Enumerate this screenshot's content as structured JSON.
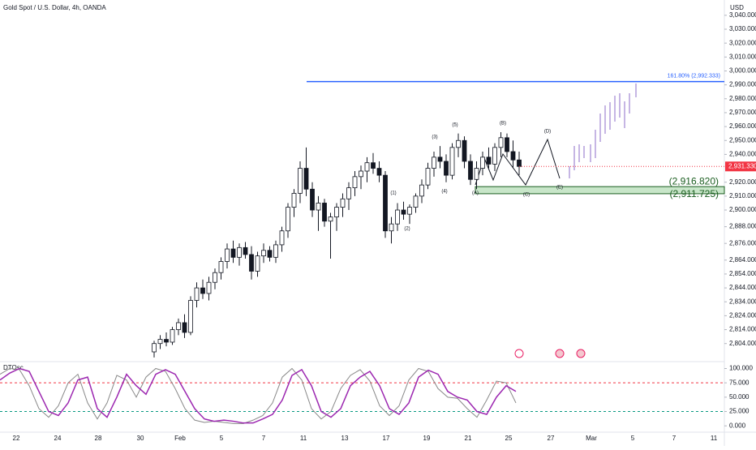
{
  "chart_data": {
    "type": "candlestick",
    "title": "Gold Spot / U.S. Dollar, 4h, OANDA",
    "currency": "USD",
    "ylim": [
      2791,
      3051
    ],
    "yticks": [
      {
        "value": 3040,
        "label": "3,040.000"
      },
      {
        "value": 3030,
        "label": "3,030.000"
      },
      {
        "value": 3020,
        "label": "3,020.000"
      },
      {
        "value": 3010,
        "label": "3,010.000"
      },
      {
        "value": 3000,
        "label": "3,000.000"
      },
      {
        "value": 2990,
        "label": "2,990.000"
      },
      {
        "value": 2980,
        "label": "2,980.000"
      },
      {
        "value": 2970,
        "label": "2,970.000"
      },
      {
        "value": 2960,
        "label": "2,960.000"
      },
      {
        "value": 2950,
        "label": "2,950.000"
      },
      {
        "value": 2940,
        "label": "2,940.000"
      },
      {
        "value": 2920,
        "label": "2,920.000"
      },
      {
        "value": 2910,
        "label": "2,910.000"
      },
      {
        "value": 2900,
        "label": "2,900.000"
      },
      {
        "value": 2888,
        "label": "2,888.000"
      },
      {
        "value": 2876,
        "label": "2,876.000"
      },
      {
        "value": 2864,
        "label": "2,864.000"
      },
      {
        "value": 2854,
        "label": "2,854.000"
      },
      {
        "value": 2844,
        "label": "2,844.000"
      },
      {
        "value": 2834,
        "label": "2,834.000"
      },
      {
        "value": 2824,
        "label": "2,824.000"
      },
      {
        "value": 2814,
        "label": "2,814.000"
      },
      {
        "value": 2804,
        "label": "2,804.000"
      }
    ],
    "xticks": [
      "22",
      "24",
      "28",
      "30",
      "Feb",
      "5",
      "7",
      "11",
      "13",
      "17",
      "19",
      "21",
      "25",
      "27",
      "Mar",
      "5",
      "7",
      "11"
    ],
    "up_color": "#ffffff",
    "down_color": "#131722",
    "ohlc": [
      [
        2798,
        2806,
        2794,
        2804
      ],
      [
        2804,
        2810,
        2800,
        2807
      ],
      [
        2807,
        2812,
        2802,
        2805
      ],
      [
        2805,
        2816,
        2803,
        2814
      ],
      [
        2814,
        2822,
        2810,
        2819
      ],
      [
        2819,
        2825,
        2808,
        2812
      ],
      [
        2812,
        2838,
        2810,
        2835
      ],
      [
        2835,
        2848,
        2830,
        2844
      ],
      [
        2844,
        2850,
        2836,
        2840
      ],
      [
        2840,
        2852,
        2835,
        2848
      ],
      [
        2848,
        2858,
        2843,
        2855
      ],
      [
        2855,
        2866,
        2850,
        2863
      ],
      [
        2863,
        2876,
        2858,
        2872
      ],
      [
        2872,
        2878,
        2862,
        2866
      ],
      [
        2866,
        2876,
        2860,
        2873
      ],
      [
        2873,
        2877,
        2865,
        2868
      ],
      [
        2868,
        2874,
        2850,
        2856
      ],
      [
        2856,
        2870,
        2852,
        2867
      ],
      [
        2867,
        2876,
        2862,
        2871
      ],
      [
        2871,
        2874,
        2863,
        2866
      ],
      [
        2866,
        2878,
        2862,
        2875
      ],
      [
        2875,
        2888,
        2870,
        2885
      ],
      [
        2885,
        2905,
        2880,
        2902
      ],
      [
        2902,
        2915,
        2895,
        2912
      ],
      [
        2912,
        2935,
        2905,
        2930
      ],
      [
        2930,
        2945,
        2910,
        2915
      ],
      [
        2915,
        2920,
        2895,
        2900
      ],
      [
        2900,
        2910,
        2885,
        2905
      ],
      [
        2905,
        2908,
        2888,
        2892
      ],
      [
        2892,
        2898,
        2865,
        2895
      ],
      [
        2895,
        2905,
        2885,
        2902
      ],
      [
        2902,
        2912,
        2895,
        2908
      ],
      [
        2908,
        2920,
        2900,
        2916
      ],
      [
        2916,
        2928,
        2910,
        2924
      ],
      [
        2924,
        2932,
        2915,
        2928
      ],
      [
        2928,
        2938,
        2920,
        2934
      ],
      [
        2934,
        2941,
        2926,
        2930
      ],
      [
        2930,
        2935,
        2920,
        2925
      ],
      [
        2925,
        2928,
        2880,
        2885
      ],
      [
        2885,
        2895,
        2876,
        2890
      ],
      [
        2890,
        2905,
        2885,
        2900
      ],
      [
        2900,
        2906,
        2893,
        2897
      ],
      [
        2897,
        2904,
        2890,
        2902
      ],
      [
        2902,
        2912,
        2898,
        2910
      ],
      [
        2910,
        2922,
        2905,
        2918
      ],
      [
        2918,
        2934,
        2915,
        2930
      ],
      [
        2930,
        2942,
        2924,
        2938
      ],
      [
        2938,
        2946,
        2930,
        2935
      ],
      [
        2935,
        2940,
        2920,
        2925
      ],
      [
        2925,
        2948,
        2922,
        2945
      ],
      [
        2945,
        2955,
        2938,
        2950
      ],
      [
        2950,
        2953,
        2930,
        2935
      ],
      [
        2935,
        2940,
        2918,
        2922
      ],
      [
        2922,
        2935,
        2915,
        2930
      ],
      [
        2930,
        2942,
        2925,
        2938
      ],
      [
        2938,
        2945,
        2930,
        2933
      ],
      [
        2933,
        2948,
        2928,
        2945
      ],
      [
        2945,
        2956,
        2938,
        2952
      ],
      [
        2952,
        2955,
        2938,
        2942
      ],
      [
        2942,
        2950,
        2930,
        2936
      ],
      [
        2936,
        2942,
        2925,
        2931.33
      ]
    ],
    "last_price": {
      "value": 2931.33,
      "label": "2,931.330"
    },
    "fib_level": {
      "value": 2992.333,
      "label": "161.80% (2,992.333)"
    },
    "zone": [
      {
        "value": 2916.82,
        "label": "(2,916.820)"
      },
      {
        "value": 2911.725,
        "label": "(2,911.725)"
      }
    ],
    "wave_labels": [
      "(1)",
      "(2)",
      "(3)",
      "(4)",
      "(5)",
      "(A)",
      "(B)",
      "(C)",
      "(D)",
      "(E)"
    ],
    "oscillator": {
      "name": "DTOsc",
      "ylim": [
        -11,
        112
      ],
      "yticks": [
        {
          "value": 100,
          "label": "100.000"
        },
        {
          "value": 75,
          "label": "75.000"
        },
        {
          "value": 50,
          "label": "50.000"
        },
        {
          "value": 25,
          "label": "25.000"
        },
        {
          "value": 0,
          "label": "0.000"
        }
      ],
      "upper": 75,
      "lower": 25,
      "series": [
        {
          "color": "#9c27b0",
          "values": [
            80,
            92,
            100,
            95,
            60,
            25,
            18,
            40,
            80,
            85,
            30,
            15,
            50,
            90,
            70,
            55,
            90,
            98,
            90,
            60,
            30,
            12,
            8,
            10,
            8,
            5,
            5,
            12,
            20,
            45,
            88,
            98,
            70,
            25,
            15,
            30,
            70,
            85,
            95,
            70,
            30,
            20,
            40,
            85,
            97,
            90,
            60,
            50,
            45,
            25,
            20,
            50,
            70,
            60
          ]
        },
        {
          "color": "#888888",
          "values": [
            90,
            100,
            98,
            70,
            30,
            15,
            35,
            75,
            90,
            40,
            12,
            40,
            88,
            80,
            50,
            85,
            100,
            95,
            65,
            30,
            10,
            6,
            8,
            6,
            4,
            4,
            10,
            18,
            40,
            85,
            100,
            80,
            30,
            12,
            25,
            65,
            88,
            98,
            78,
            35,
            18,
            35,
            80,
            100,
            95,
            65,
            50,
            48,
            30,
            15,
            45,
            78,
            75,
            40
          ]
        }
      ]
    }
  }
}
